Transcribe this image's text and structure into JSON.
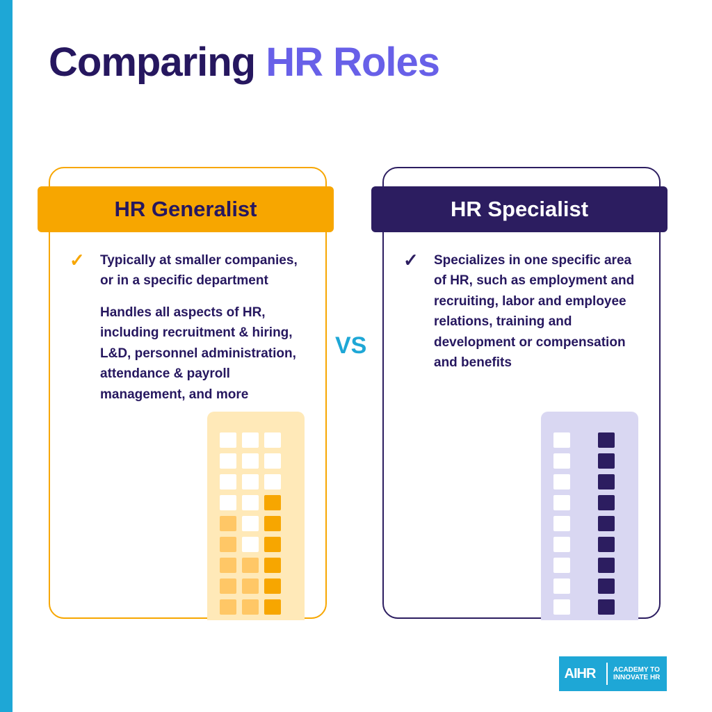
{
  "colors": {
    "stripe": "#1ea7d6",
    "title_dark": "#26175f",
    "title_accent": "#6860e8",
    "vs": "#1ea7d6",
    "text_dark": "#26175f",
    "logo_bg": "#1ea7d6"
  },
  "title": {
    "part1": "Comparing ",
    "part2": "HR Roles"
  },
  "vs_label": "VS",
  "cards": {
    "left": {
      "border": "#f7a600",
      "header_bg": "#f7a600",
      "header_fg": "#26175f",
      "header_label": "HR Generalist",
      "check_color": "#f7a600",
      "point1": "Typically at smaller companies, or in a specific department",
      "point2": "Handles all aspects of HR, including recruitment & hiring, L&D, personnel administration, attendance & payroll management, and more",
      "building_bg": "#ffe9b8",
      "cell_empty": "#ffffff",
      "cell_light": "#ffc766",
      "cell_dark": "#f7a600",
      "grid": [
        [
          0,
          0,
          0
        ],
        [
          0,
          0,
          0
        ],
        [
          0,
          0,
          0
        ],
        [
          0,
          0,
          2
        ],
        [
          1,
          0,
          2
        ],
        [
          1,
          0,
          2
        ],
        [
          1,
          1,
          2
        ],
        [
          1,
          1,
          2
        ],
        [
          1,
          1,
          2
        ]
      ]
    },
    "right": {
      "border": "#2c1d60",
      "header_bg": "#2c1d60",
      "header_fg": "#ffffff",
      "header_label": "HR Specialist",
      "check_color": "#2c1d60",
      "point1": "Specializes in one specific area of HR, such as employment and recruiting, labor and employee relations, training and development or compensation and benefits",
      "building_bg": "#d9d7f2",
      "cell_empty": "#ffffff",
      "cell_light": "#d9d7f2",
      "cell_dark": "#2c1d60",
      "grid": [
        [
          0,
          1,
          2
        ],
        [
          0,
          1,
          2
        ],
        [
          0,
          1,
          2
        ],
        [
          0,
          1,
          2
        ],
        [
          0,
          1,
          2
        ],
        [
          0,
          1,
          2
        ],
        [
          0,
          1,
          2
        ],
        [
          0,
          1,
          2
        ],
        [
          0,
          1,
          2
        ]
      ]
    }
  },
  "logo": {
    "mark": "AIHR",
    "line1": "ACADEMY TO",
    "line2": "INNOVATE HR"
  }
}
